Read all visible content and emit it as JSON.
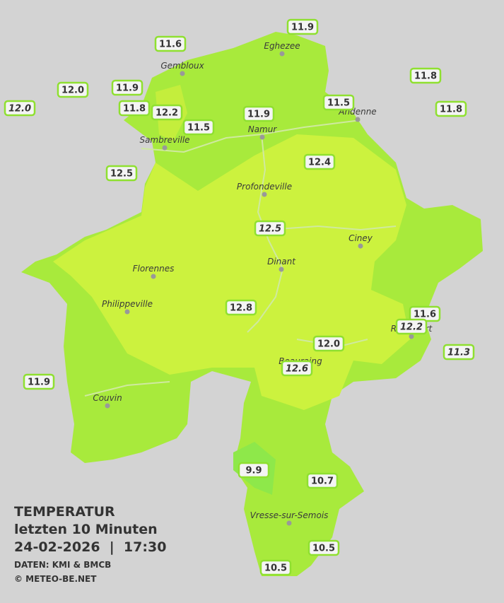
{
  "header": {
    "title": "TEMPERATUR",
    "subtitle": "letzten 10 Minuten",
    "datetime": "24-02-2026  |  17:30",
    "source": "DATEN: KMI & BMCB",
    "copyright": "© METEO-BE.NET"
  },
  "cities": [
    "Eghezee",
    "Gembloux",
    "Andenne",
    "Namur",
    "Sambreville",
    "Profondeville",
    "Ciney",
    "Dinant",
    "Florennes",
    "Philippeville",
    "Rochefort",
    "Beauraing",
    "Couvin",
    "Vresse-sur-Semois"
  ],
  "stations": [
    "11.9",
    "11.6",
    "11.8",
    "12.0",
    "11.9",
    "12.0",
    "11.8",
    "12.2",
    "11.5",
    "11.8",
    "11.9",
    "11.5",
    "12.4",
    "12.5",
    "12.5",
    "12.8",
    "11.6",
    "12.2",
    "12.0",
    "11.3",
    "12.6",
    "11.9",
    "9.9",
    "10.7",
    "10.5",
    "10.5"
  ]
}
